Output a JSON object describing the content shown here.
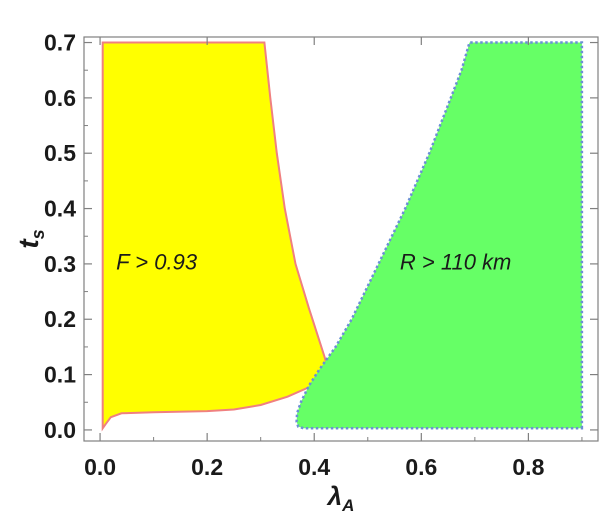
{
  "chart_data": {
    "type": "area",
    "xlabel": "λ",
    "xlabel_sub": "A",
    "ylabel": "t",
    "ylabel_sub": "s",
    "xlim": [
      -0.03,
      0.93
    ],
    "ylim": [
      -0.02,
      0.71
    ],
    "xticks": [
      0.0,
      0.2,
      0.4,
      0.6,
      0.8
    ],
    "xtick_labels": [
      "0.0",
      "0.2",
      "0.4",
      "0.6",
      "0.8"
    ],
    "yticks": [
      0.0,
      0.1,
      0.2,
      0.3,
      0.4,
      0.5,
      0.6,
      0.7
    ],
    "ytick_labels": [
      "0.0",
      "0.1",
      "0.2",
      "0.3",
      "0.4",
      "0.5",
      "0.6",
      "0.7"
    ],
    "grid": false,
    "annotations": [
      {
        "text": "F > 0.93",
        "x": 0.03,
        "y": 0.29
      },
      {
        "text": "R > 110 km",
        "x": 0.56,
        "y": 0.29
      }
    ],
    "regions": [
      {
        "name": "F > 0.93",
        "fill": "#ffff00",
        "stroke": "#f08080",
        "dashed": false,
        "boundary": [
          [
            0.005,
            0.7
          ],
          [
            0.005,
            0.003
          ],
          [
            0.01,
            0.01
          ],
          [
            0.02,
            0.023
          ],
          [
            0.04,
            0.03
          ],
          [
            0.1,
            0.032
          ],
          [
            0.2,
            0.034
          ],
          [
            0.25,
            0.037
          ],
          [
            0.3,
            0.045
          ],
          [
            0.35,
            0.06
          ],
          [
            0.39,
            0.077
          ],
          [
            0.415,
            0.095
          ],
          [
            0.425,
            0.11
          ],
          [
            0.42,
            0.13
          ],
          [
            0.41,
            0.16
          ],
          [
            0.39,
            0.22
          ],
          [
            0.365,
            0.3
          ],
          [
            0.345,
            0.4
          ],
          [
            0.33,
            0.5
          ],
          [
            0.318,
            0.6
          ],
          [
            0.307,
            0.7
          ]
        ]
      },
      {
        "name": "R > 110 km",
        "fill": "#66ff66",
        "stroke": "#6b8fd6",
        "dashed": true,
        "boundary": [
          [
            0.9,
            0.003
          ],
          [
            0.9,
            0.7
          ],
          [
            0.69,
            0.7
          ],
          [
            0.675,
            0.65
          ],
          [
            0.655,
            0.6
          ],
          [
            0.615,
            0.5
          ],
          [
            0.57,
            0.4
          ],
          [
            0.52,
            0.3
          ],
          [
            0.47,
            0.2
          ],
          [
            0.44,
            0.15
          ],
          [
            0.41,
            0.11
          ],
          [
            0.39,
            0.08
          ],
          [
            0.375,
            0.05
          ],
          [
            0.368,
            0.03
          ],
          [
            0.367,
            0.015
          ],
          [
            0.37,
            0.006
          ],
          [
            0.38,
            0.003
          ]
        ]
      }
    ]
  }
}
